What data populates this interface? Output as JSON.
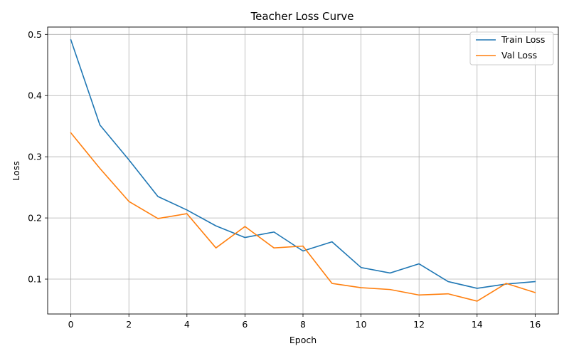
{
  "chart_data": {
    "type": "line",
    "title": "Teacher Loss Curve",
    "xlabel": "Epoch",
    "ylabel": "Loss",
    "x": [
      0,
      1,
      2,
      3,
      4,
      5,
      6,
      7,
      8,
      9,
      10,
      11,
      12,
      13,
      14,
      15,
      16
    ],
    "xlim": [
      -0.8,
      16.8
    ],
    "ylim": [
      0.043,
      0.512
    ],
    "xticks": [
      0,
      2,
      4,
      6,
      8,
      10,
      12,
      14,
      16
    ],
    "yticks": [
      0.1,
      0.2,
      0.3,
      0.4,
      0.5
    ],
    "xtick_labels": [
      "0",
      "2",
      "4",
      "6",
      "8",
      "10",
      "12",
      "14",
      "16"
    ],
    "ytick_labels": [
      "0.1",
      "0.2",
      "0.3",
      "0.4",
      "0.5"
    ],
    "grid": true,
    "legend_position": "upper right",
    "series": [
      {
        "name": "Train Loss",
        "color": "#1f77b4",
        "values": [
          0.491,
          0.352,
          0.295,
          0.235,
          0.213,
          0.187,
          0.168,
          0.177,
          0.146,
          0.161,
          0.119,
          0.11,
          0.125,
          0.096,
          0.085,
          0.092,
          0.096
        ]
      },
      {
        "name": "Val Loss",
        "color": "#ff7f0e",
        "values": [
          0.339,
          0.281,
          0.227,
          0.199,
          0.207,
          0.151,
          0.186,
          0.151,
          0.154,
          0.093,
          0.086,
          0.083,
          0.074,
          0.076,
          0.064,
          0.093,
          0.078
        ]
      }
    ]
  }
}
